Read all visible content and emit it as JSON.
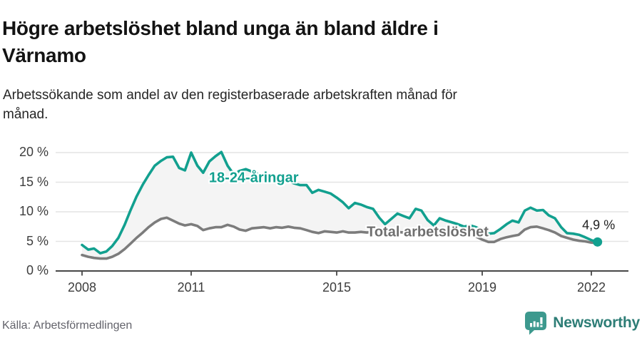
{
  "header": {
    "title_line1": "Högre arbetslöshet bland unga än bland äldre i",
    "title_line2": "Värnamo",
    "subtitle": "Arbetssökande som andel av den registerbaserade arbetskraften månad för månad."
  },
  "footer": {
    "source": "Källa: Arbetsförmedlingen",
    "logo_text": "Newsworthy",
    "logo_icon": "bar-chart-speech-bubble",
    "logo_icon_color": "#3d998e",
    "logo_text_color": "#2d7d76"
  },
  "chart_data": {
    "type": "line",
    "x_unit": "decimal_year",
    "grid": "horizontal",
    "background": "#ffffff",
    "fill_between_color": "#f4f4f4",
    "axis_color": "#474747",
    "grid_color": "#e4e4e4",
    "ylim": [
      0,
      21
    ],
    "xlim": [
      2007.3,
      2023.0
    ],
    "yticks": [
      {
        "value": 0,
        "label": "0 %"
      },
      {
        "value": 5,
        "label": "5 %"
      },
      {
        "value": 10,
        "label": "10 %"
      },
      {
        "value": 15,
        "label": "15 %"
      },
      {
        "value": 20,
        "label": "20 %"
      }
    ],
    "xticks": [
      {
        "value": 2008,
        "label": "2008"
      },
      {
        "value": 2011,
        "label": "2011"
      },
      {
        "value": 2015,
        "label": "2015"
      },
      {
        "value": 2019,
        "label": "2019"
      },
      {
        "value": 2022,
        "label": "2022"
      }
    ],
    "x": [
      2008,
      2008.17,
      2008.33,
      2008.5,
      2008.67,
      2008.83,
      2009,
      2009.17,
      2009.33,
      2009.5,
      2009.67,
      2009.83,
      2010,
      2010.17,
      2010.33,
      2010.5,
      2010.67,
      2010.83,
      2011,
      2011.17,
      2011.33,
      2011.5,
      2011.67,
      2011.83,
      2012,
      2012.17,
      2012.33,
      2012.5,
      2012.67,
      2012.83,
      2013,
      2013.17,
      2013.33,
      2013.5,
      2013.67,
      2013.83,
      2014,
      2014.17,
      2014.33,
      2014.5,
      2014.67,
      2014.83,
      2015,
      2015.17,
      2015.33,
      2015.5,
      2015.67,
      2015.83,
      2016,
      2016.17,
      2016.33,
      2016.5,
      2016.67,
      2016.83,
      2017,
      2017.17,
      2017.33,
      2017.5,
      2017.67,
      2017.83,
      2018,
      2018.17,
      2018.33,
      2018.5,
      2018.67,
      2018.83,
      2019,
      2019.17,
      2019.33,
      2019.5,
      2019.67,
      2019.83,
      2020,
      2020.17,
      2020.33,
      2020.5,
      2020.67,
      2020.83,
      2021,
      2021.17,
      2021.33,
      2021.5,
      2021.67,
      2021.83,
      2022,
      2022.17
    ],
    "series": [
      {
        "name": "18-24-åringar",
        "color": "#12a08f",
        "label_x": 2012.72,
        "label_y": 15.7,
        "values": [
          4.4,
          3.6,
          3.8,
          3.0,
          3.3,
          4.2,
          5.6,
          7.8,
          10.2,
          12.6,
          14.6,
          16.2,
          17.8,
          18.6,
          19.2,
          19.3,
          17.4,
          17.0,
          20.0,
          17.8,
          16.6,
          18.5,
          19.4,
          20.1,
          17.8,
          16.3,
          16.9,
          17.2,
          16.8,
          16.4,
          16.0,
          16.2,
          15.6,
          15.8,
          15.2,
          14.8,
          14.5,
          14.5,
          13.2,
          13.7,
          13.4,
          13.1,
          12.4,
          11.6,
          10.6,
          11.5,
          11.2,
          10.8,
          10.5,
          9.0,
          7.9,
          8.8,
          9.7,
          9.3,
          8.9,
          10.5,
          10.2,
          8.6,
          7.7,
          8.9,
          8.5,
          8.2,
          7.9,
          7.5,
          7.7,
          7.4,
          6.9,
          6.3,
          6.4,
          7.1,
          7.9,
          8.5,
          8.2,
          10.2,
          10.7,
          10.2,
          10.3,
          9.4,
          8.9,
          7.4,
          6.4,
          6.3,
          6.1,
          5.7,
          5.2,
          4.9
        ]
      },
      {
        "name": "Total arbetslöshet",
        "color": "#7c7c7c",
        "label_x": 2017.5,
        "label_y": 6.5,
        "values": [
          2.7,
          2.4,
          2.2,
          2.1,
          2.1,
          2.4,
          2.9,
          3.7,
          4.6,
          5.6,
          6.5,
          7.4,
          8.2,
          8.8,
          9.0,
          8.5,
          8.0,
          7.7,
          7.9,
          7.6,
          6.9,
          7.2,
          7.4,
          7.4,
          7.8,
          7.5,
          7.0,
          6.8,
          7.2,
          7.3,
          7.4,
          7.2,
          7.4,
          7.3,
          7.5,
          7.3,
          7.2,
          6.9,
          6.6,
          6.4,
          6.7,
          6.6,
          6.5,
          6.7,
          6.5,
          6.5,
          6.6,
          6.5,
          6.6,
          6.5,
          6.4,
          6.5,
          6.6,
          6.5,
          6.5,
          6.6,
          6.5,
          6.4,
          6.3,
          6.4,
          6.3,
          6.2,
          6.1,
          6.0,
          5.9,
          5.8,
          5.3,
          4.9,
          4.9,
          5.4,
          5.7,
          5.9,
          6.1,
          7.0,
          7.4,
          7.5,
          7.2,
          6.9,
          6.5,
          5.9,
          5.6,
          5.3,
          5.1,
          5.0,
          4.8,
          4.7
        ]
      }
    ],
    "end_dot": {
      "series_index": 0,
      "x": 2022.17,
      "y": 4.9
    },
    "annotation": {
      "label": "4,9 %",
      "x": 2022.2,
      "y": 7.7
    }
  }
}
